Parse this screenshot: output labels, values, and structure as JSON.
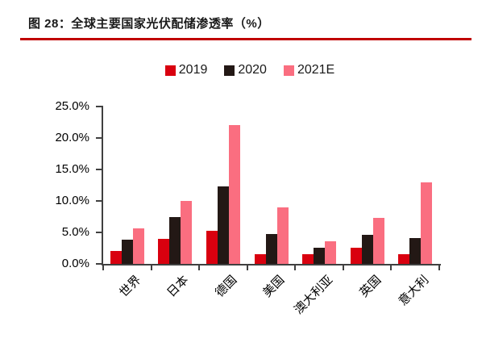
{
  "figure": {
    "title": "图 28：全球主要国家光伏配储渗透率（%）"
  },
  "chart_data": {
    "type": "bar",
    "title": "全球主要国家光伏配储渗透率（%）",
    "categories": [
      "世界",
      "日本",
      "德国",
      "美国",
      "澳大利亚",
      "英国",
      "意大利"
    ],
    "series": [
      {
        "name": "2019",
        "color": "#D9000F",
        "values": [
          2.0,
          4.0,
          5.2,
          1.6,
          1.6,
          2.6,
          1.6
        ]
      },
      {
        "name": "2020",
        "color": "#231815",
        "values": [
          3.8,
          7.5,
          12.3,
          4.7,
          2.6,
          4.6,
          4.1
        ]
      },
      {
        "name": "2021E",
        "color": "#FA6E80",
        "values": [
          5.7,
          10.0,
          22.1,
          9.0,
          3.6,
          7.3,
          13.0
        ]
      }
    ],
    "ylim": [
      0,
      25
    ],
    "ytick_step": 5,
    "ytick_labels": [
      "0.0%",
      "5.0%",
      "10.0%",
      "15.0%",
      "20.0%",
      "25.0%"
    ],
    "grid": false,
    "legend_position": "top-center",
    "colors": {
      "accent_rule": "#C00000",
      "axis": "#404040",
      "text": "#000000"
    }
  }
}
